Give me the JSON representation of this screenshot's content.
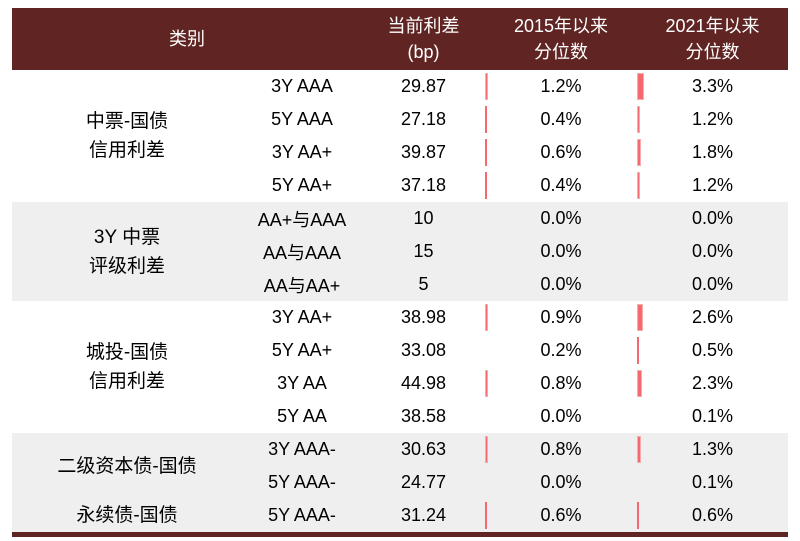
{
  "colors": {
    "header_bg": "#602523",
    "header_text": "#ffffff",
    "body_text": "#000000",
    "shade_bg": "#efefef",
    "bar_fill": "#f5696c",
    "bar_border": "#faabad",
    "footer_bg": "#602523"
  },
  "header": {
    "category": "类别",
    "spread_line1": "当前利差",
    "spread_line2": "(bp)",
    "p2015_line1": "2015年以来",
    "p2015_line2": "分位数",
    "p2021_line1": "2021年以来",
    "p2021_line2": "分位数"
  },
  "chart_data": {
    "type": "table",
    "columns": [
      "类别",
      "",
      "当前利差 (bp)",
      "2015年以来分位数",
      "2021年以来分位数"
    ],
    "percent_unit": "%",
    "groups": [
      {
        "label": [
          "中票-国债",
          "信用利差"
        ],
        "shade": false,
        "rows": [
          {
            "rating": "3Y AAA",
            "spread": "29.87",
            "p2015": 1.2,
            "p2021": 3.3
          },
          {
            "rating": "5Y AAA",
            "spread": "27.18",
            "p2015": 0.4,
            "p2021": 1.2
          },
          {
            "rating": "3Y AA+",
            "spread": "39.87",
            "p2015": 0.6,
            "p2021": 1.8
          },
          {
            "rating": "5Y AA+",
            "spread": "37.18",
            "p2015": 0.4,
            "p2021": 1.2
          }
        ]
      },
      {
        "label": [
          "3Y 中票",
          "评级利差"
        ],
        "shade": true,
        "rows": [
          {
            "rating": "AA+与AAA",
            "spread": "10",
            "p2015": 0.0,
            "p2021": 0.0
          },
          {
            "rating": "AA与AAA",
            "spread": "15",
            "p2015": 0.0,
            "p2021": 0.0
          },
          {
            "rating": "AA与AA+",
            "spread": "5",
            "p2015": 0.0,
            "p2021": 0.0
          }
        ]
      },
      {
        "label": [
          "城投-国债",
          "信用利差"
        ],
        "shade": false,
        "rows": [
          {
            "rating": "3Y AA+",
            "spread": "38.98",
            "p2015": 0.9,
            "p2021": 2.6
          },
          {
            "rating": "5Y AA+",
            "spread": "33.08",
            "p2015": 0.2,
            "p2021": 0.5
          },
          {
            "rating": "3Y AA",
            "spread": "44.98",
            "p2015": 0.8,
            "p2021": 2.3
          },
          {
            "rating": "5Y AA",
            "spread": "38.58",
            "p2015": 0.0,
            "p2021": 0.1
          }
        ]
      },
      {
        "label": [
          "二级资本债-国债"
        ],
        "shade": true,
        "rows": [
          {
            "rating": "3Y AAA-",
            "spread": "30.63",
            "p2015": 0.8,
            "p2021": 1.3
          },
          {
            "rating": "5Y AAA-",
            "spread": "24.77",
            "p2015": 0.0,
            "p2021": 0.1
          }
        ]
      },
      {
        "label": [
          "永续债-国债"
        ],
        "shade": true,
        "rows": [
          {
            "rating": "5Y AAA-",
            "spread": "31.24",
            "p2015": 0.6,
            "p2021": 0.6
          }
        ]
      }
    ]
  }
}
